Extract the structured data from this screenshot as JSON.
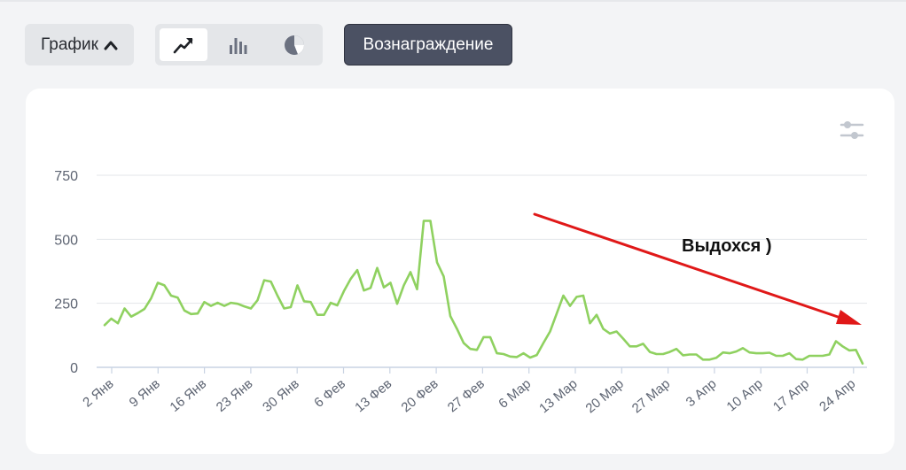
{
  "toolbar": {
    "chart_menu_label": "График",
    "view_modes": [
      {
        "name": "line-chart-icon",
        "active": true
      },
      {
        "name": "bar-chart-icon",
        "active": false
      },
      {
        "name": "pie-chart-icon",
        "active": false
      }
    ],
    "reward_label": "Вознаграждение"
  },
  "colors": {
    "line": "#8fd160",
    "arrow": "#e01818",
    "grid": "#e3e6ea",
    "axis": "#c9d3e3"
  },
  "chart_data": {
    "type": "line",
    "title": "",
    "xlabel": "",
    "ylabel": "",
    "ylim": [
      0,
      750
    ],
    "yticks": [
      0,
      250,
      500,
      750
    ],
    "xticks": [
      "2 Янв",
      "9 Янв",
      "16 Янв",
      "23 Янв",
      "30 Янв",
      "6 Фев",
      "13 Фев",
      "20 Фев",
      "27 Фев",
      "6 Мар",
      "13 Мар",
      "20 Мар",
      "27 Мар",
      "3 Апр",
      "10 Апр",
      "17 Апр",
      "24 Апр"
    ],
    "grid": true,
    "annotation": {
      "text": "Выдохся )",
      "arrow": "down-right"
    },
    "series": [
      {
        "name": "",
        "values": [
          165,
          190,
          172,
          230,
          198,
          212,
          228,
          270,
          330,
          320,
          280,
          272,
          222,
          208,
          210,
          255,
          240,
          252,
          240,
          252,
          248,
          238,
          230,
          262,
          340,
          335,
          280,
          230,
          235,
          320,
          258,
          255,
          205,
          205,
          252,
          242,
          298,
          345,
          380,
          300,
          310,
          388,
          312,
          330,
          248,
          320,
          372,
          305,
          572,
          572,
          410,
          355,
          200,
          150,
          95,
          72,
          68,
          118,
          118,
          55,
          52,
          42,
          40,
          55,
          38,
          48,
          95,
          140,
          210,
          280,
          240,
          275,
          280,
          172,
          205,
          150,
          132,
          140,
          112,
          82,
          82,
          92,
          60,
          52,
          52,
          60,
          72,
          47,
          50,
          50,
          30,
          30,
          37,
          58,
          55,
          62,
          75,
          58,
          55,
          55,
          57,
          45,
          45,
          55,
          32,
          30,
          45,
          45,
          45,
          50,
          102,
          82,
          66,
          68,
          15
        ]
      }
    ]
  }
}
